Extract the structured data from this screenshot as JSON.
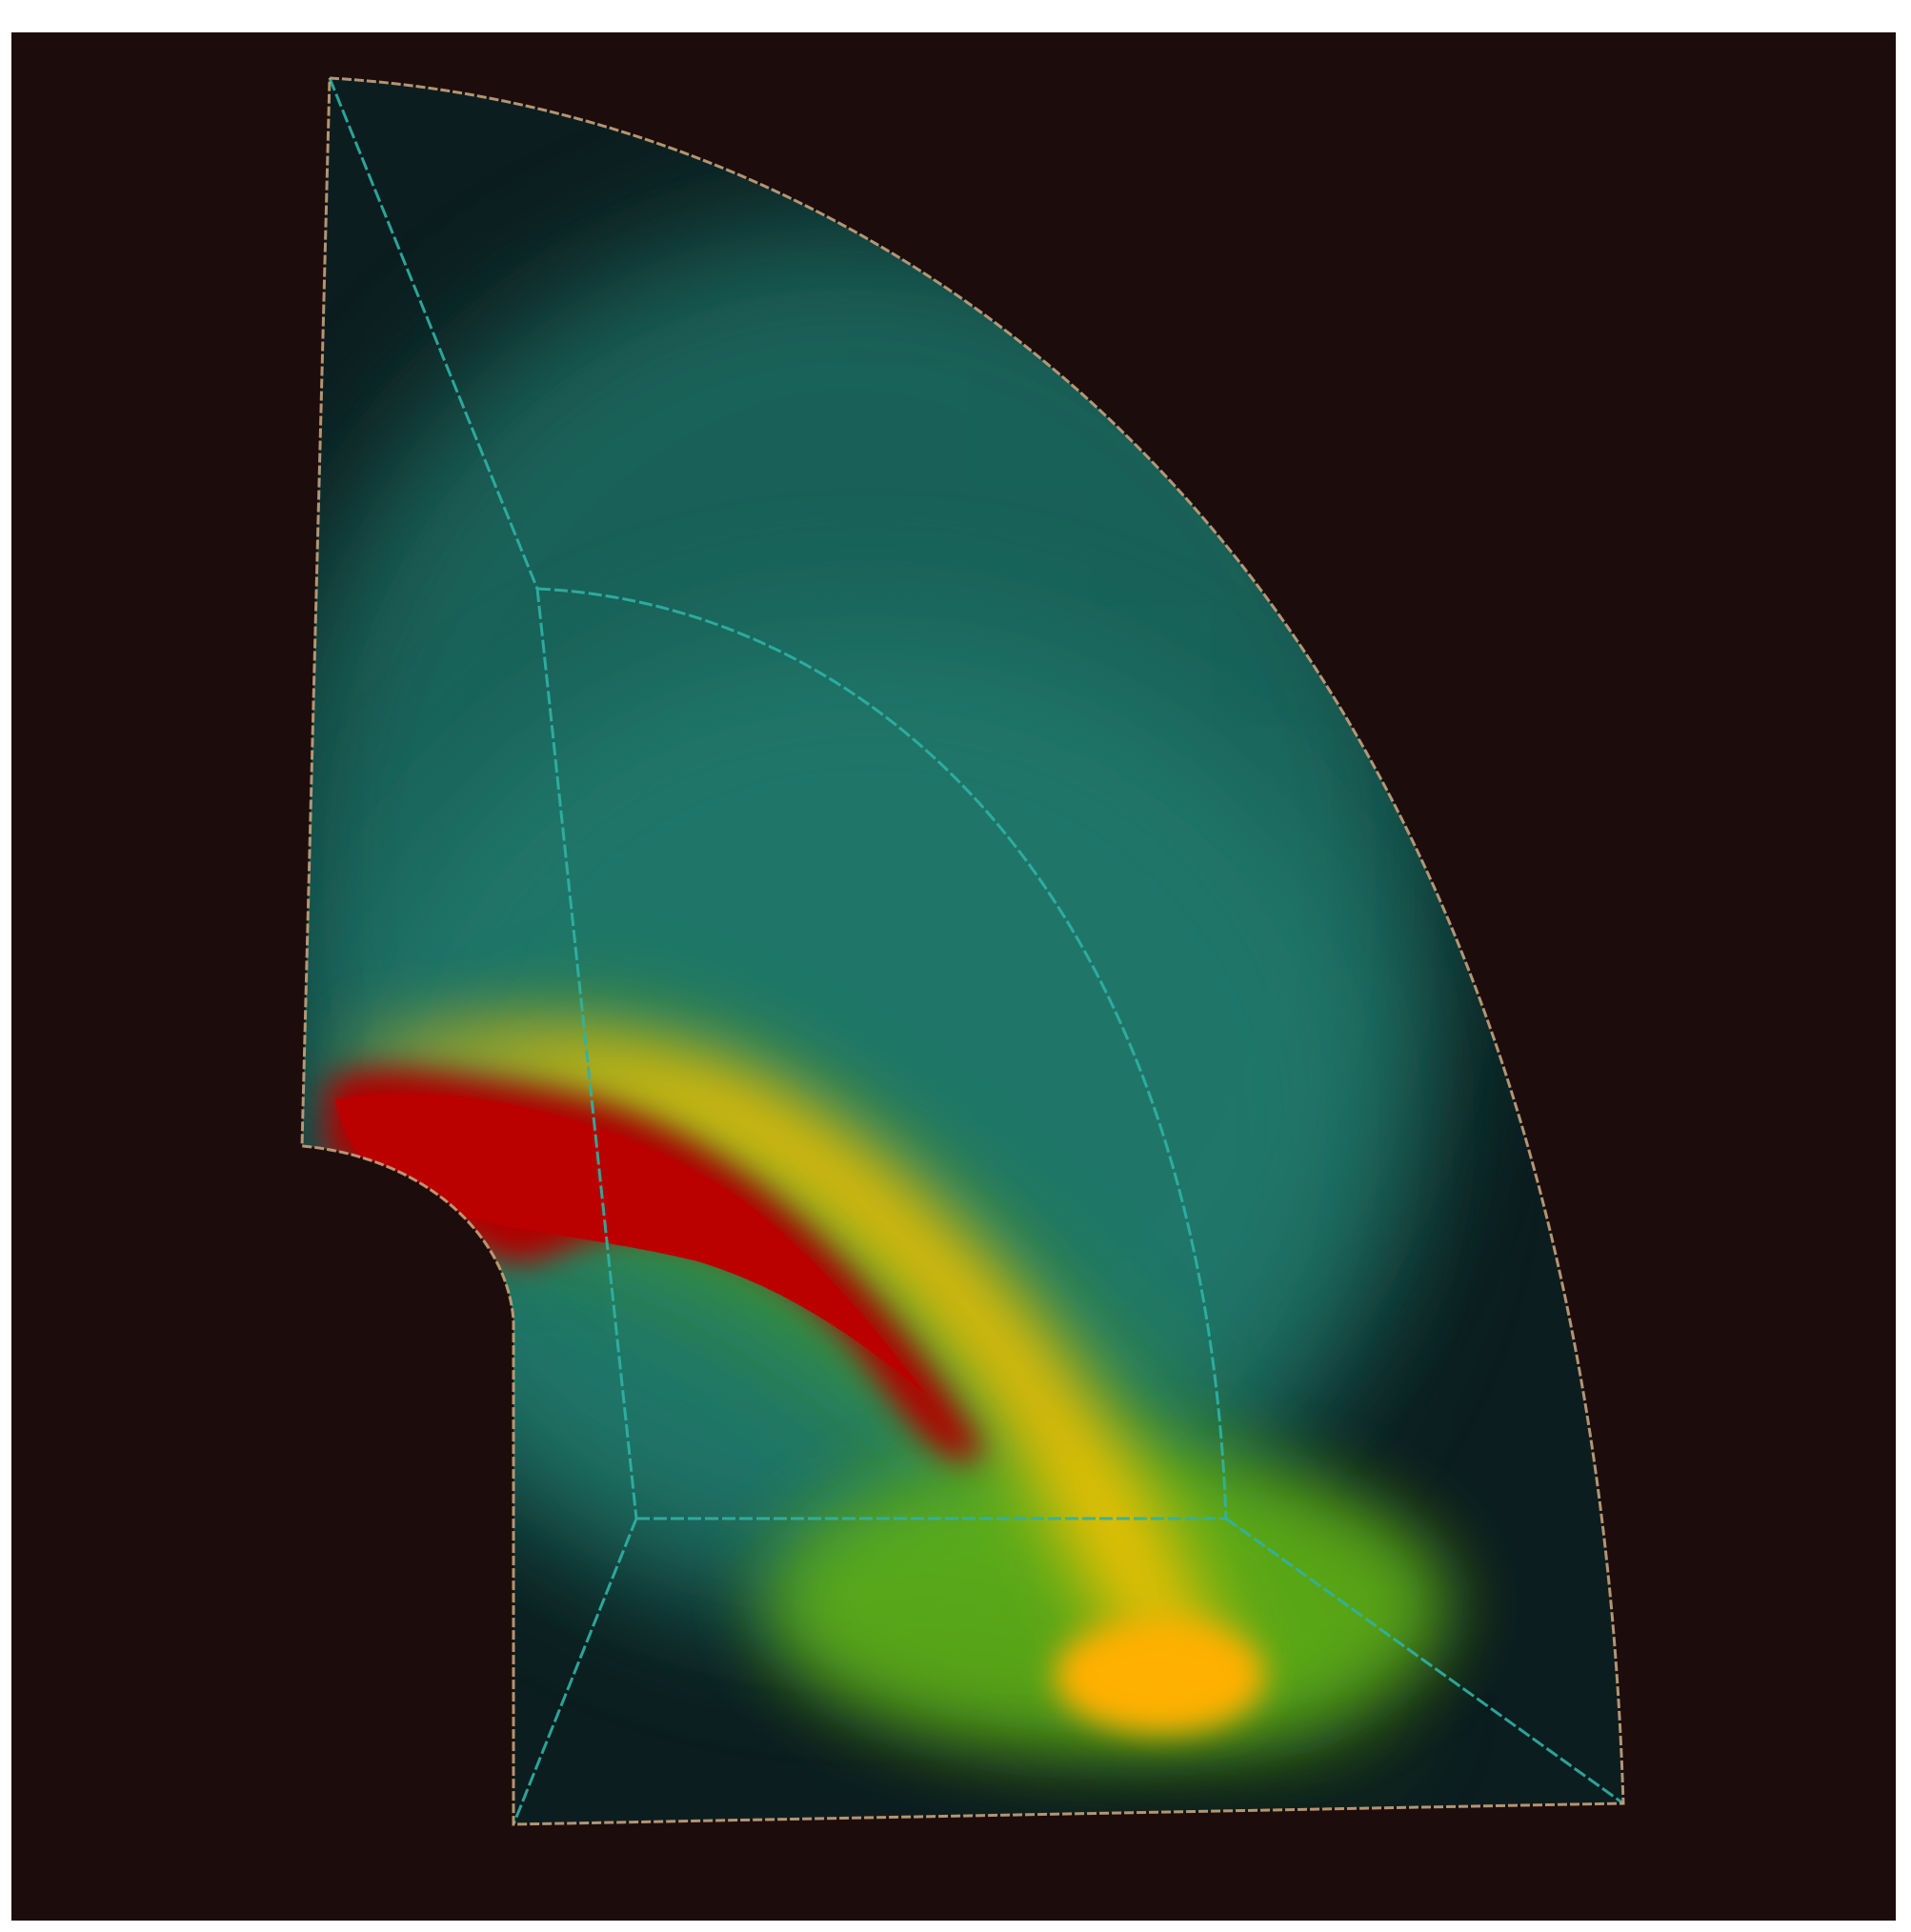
{
  "figure": {
    "description_colors": {
      "background": "#1c0d0c",
      "outer_boundary": "#c8a27c",
      "inner_boundary": "#2fb3a6",
      "field_low": "#0f3f3f",
      "field_mid": "#1e7a6c",
      "field_green": "#4aa51a",
      "field_yellow": "#ffbf00",
      "field_high": "#b30000"
    },
    "colormap_stops": [
      "#0f3f3f",
      "#1e7a6c",
      "#4aa51a",
      "#ffbf00",
      "#b30000"
    ]
  }
}
